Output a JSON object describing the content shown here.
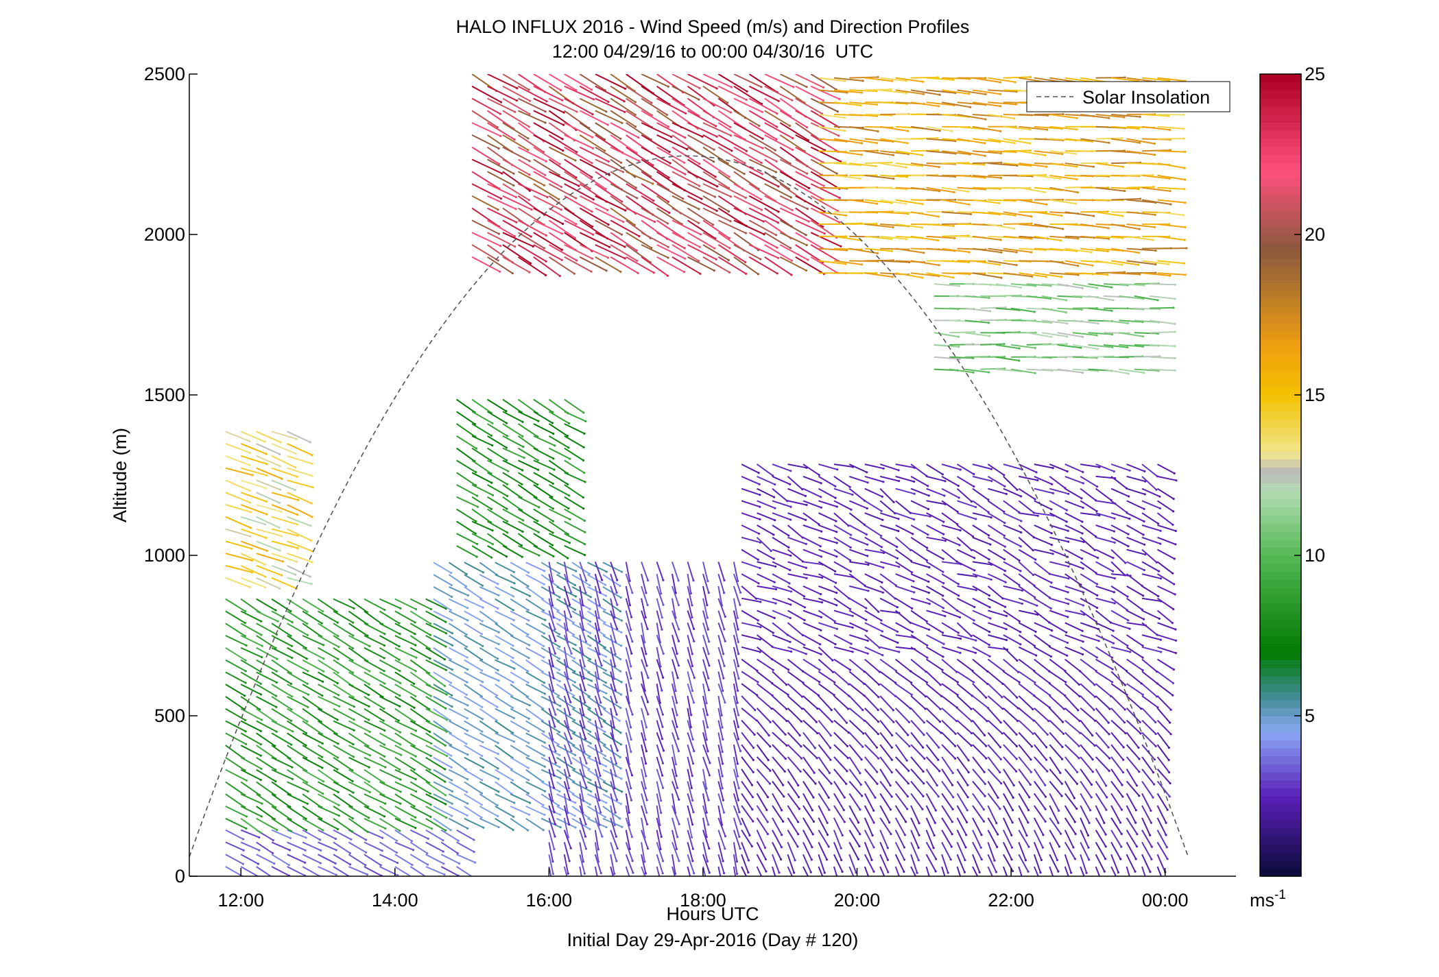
{
  "chart_data": {
    "type": "quiver",
    "title": "HALO INFLUX 2016 - Wind Speed (m/s) and Direction Profiles",
    "subtitle": "12:00 04/29/16 to 00:00 04/30/16  UTC",
    "xlabel": "Hours UTC",
    "xlabel2": "Initial Day 29-Apr-2016 (Day # 120)",
    "ylabel": "Altitude (m)",
    "xlim": [
      11.33,
      24.92
    ],
    "ylim": [
      0,
      2500
    ],
    "x_ticks": [
      {
        "value": 12,
        "label": "12:00"
      },
      {
        "value": 14,
        "label": "14:00"
      },
      {
        "value": 16,
        "label": "16:00"
      },
      {
        "value": 18,
        "label": "18:00"
      },
      {
        "value": 20,
        "label": "20:00"
      },
      {
        "value": 22,
        "label": "22:00"
      },
      {
        "value": 24,
        "label": "00:00"
      }
    ],
    "y_ticks": [
      {
        "value": 0,
        "label": "0"
      },
      {
        "value": 500,
        "label": "500"
      },
      {
        "value": 1000,
        "label": "1000"
      },
      {
        "value": 1500,
        "label": "1500"
      },
      {
        "value": 2000,
        "label": "2000"
      },
      {
        "value": 2500,
        "label": "2500"
      }
    ],
    "legend": {
      "label": "Solar Insolation",
      "placement": "top-right",
      "line_color": "#555555"
    },
    "colorbar": {
      "min": 0,
      "max": 25,
      "unit": "ms",
      "unit_superscript": "-1",
      "ticks": [
        {
          "value": 5,
          "label": "5"
        },
        {
          "value": 10,
          "label": "10"
        },
        {
          "value": 15,
          "label": "15"
        },
        {
          "value": 20,
          "label": "20"
        },
        {
          "value": 25,
          "label": "25"
        }
      ],
      "stops": [
        {
          "v": 0,
          "color": "#0b0b3a"
        },
        {
          "v": 2.5,
          "color": "#5a1fb8"
        },
        {
          "v": 4.5,
          "color": "#8aa8f5"
        },
        {
          "v": 5.7,
          "color": "#3b8a8a"
        },
        {
          "v": 7.0,
          "color": "#007a00"
        },
        {
          "v": 10.0,
          "color": "#55b855"
        },
        {
          "v": 12.0,
          "color": "#b3dcb3"
        },
        {
          "v": 12.6,
          "color": "#bbbbbb"
        },
        {
          "v": 13.2,
          "color": "#f2e68c"
        },
        {
          "v": 15.0,
          "color": "#f2c200"
        },
        {
          "v": 16.5,
          "color": "#f0a010"
        },
        {
          "v": 19.5,
          "color": "#8b5a3c"
        },
        {
          "v": 22.0,
          "color": "#ff4f7d"
        },
        {
          "v": 25.0,
          "color": "#aa0022"
        }
      ]
    },
    "solar_insolation_curve": {
      "type": "parabola",
      "start_hour": 11.33,
      "end_hour": 24.3,
      "peak_hour": 17.8,
      "peak_altitude_m": 2245,
      "start_altitude_m": 60
    },
    "wind_field_regions": [
      {
        "hours": [
          11.8,
          14.8
        ],
        "alt_m": [
          0,
          150
        ],
        "speed_ms": 3.5,
        "dir_note": "southeastward, weak"
      },
      {
        "hours": [
          11.8,
          14.5
        ],
        "alt_m": [
          150,
          900
        ],
        "speed_ms": 8.5,
        "dir_note": "southeastward"
      },
      {
        "hours": [
          11.8,
          12.6
        ],
        "alt_m": [
          900,
          1400
        ],
        "speed_ms": 14,
        "dir_note": "eastward-southeast"
      },
      {
        "hours": [
          14.5,
          16.8
        ],
        "alt_m": [
          150,
          1000
        ],
        "speed_ms": 5,
        "dir_note": "southeastward"
      },
      {
        "hours": [
          14.8,
          16.2
        ],
        "alt_m": [
          1000,
          1500
        ],
        "speed_ms": 8,
        "dir_note": "southeastward"
      },
      {
        "hours": [
          16.0,
          18.5
        ],
        "alt_m": [
          0,
          1000
        ],
        "speed_ms": 3,
        "dir_note": "southward"
      },
      {
        "hours": [
          18.5,
          23.9
        ],
        "alt_m": [
          0,
          1300
        ],
        "speed_ms": 2.5,
        "dir_note": "variable, veering with height"
      },
      {
        "hours": [
          15.0,
          19.5
        ],
        "alt_m": [
          1900,
          2500
        ],
        "speed_ms": 22,
        "dir_note": "southeastward"
      },
      {
        "hours": [
          19.5,
          23.9
        ],
        "alt_m": [
          1850,
          2500
        ],
        "speed_ms": 16,
        "dir_note": "eastward"
      },
      {
        "hours": [
          21.0,
          23.9
        ],
        "alt_m": [
          1550,
          1850
        ],
        "speed_ms": 11,
        "dir_note": "eastward"
      }
    ]
  }
}
